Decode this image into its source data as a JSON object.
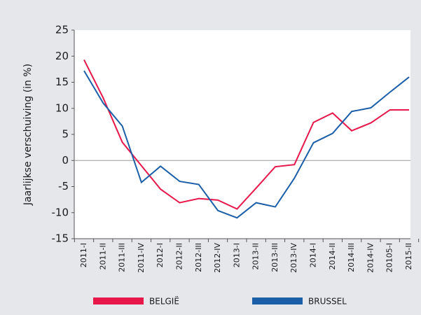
{
  "chart_data": {
    "type": "line",
    "y_label": "Jaarlijkse verschuiving (in %)",
    "categories": [
      "2011-I",
      "2011-II",
      "2011-III",
      "2011-IV",
      "2012-I",
      "2012-II",
      "2012-III",
      "2012-IV",
      "2013-I",
      "2013-II",
      "2013-III",
      "2013-IV",
      "2014-I",
      "2014-II",
      "2014-III",
      "2014-IV",
      "20105-I",
      "2015-II"
    ],
    "series": [
      {
        "name": "BELGIË",
        "color": "#e8174a",
        "values": [
          19.3,
          12,
          3.5,
          -1,
          -5.5,
          -8.1,
          -7.3,
          -7.6,
          -9.3,
          -5.3,
          -1.2,
          -0.8,
          7.3,
          9.1,
          5.7,
          7.2,
          9.7,
          9.7
        ]
      },
      {
        "name": "BRUSSEL",
        "color": "#1b5fa8",
        "values": [
          17.2,
          11,
          6.6,
          -4.2,
          -1.1,
          -4,
          -4.6,
          -9.6,
          -11,
          -8.1,
          -8.9,
          -3.4,
          3.4,
          5.2,
          9.4,
          10.1,
          13.1,
          16
        ]
      }
    ],
    "ylim": [
      -15,
      25
    ],
    "yticks": [
      -15,
      -10,
      -5,
      0,
      5,
      10,
      15,
      20,
      25
    ],
    "zero_line": true
  }
}
